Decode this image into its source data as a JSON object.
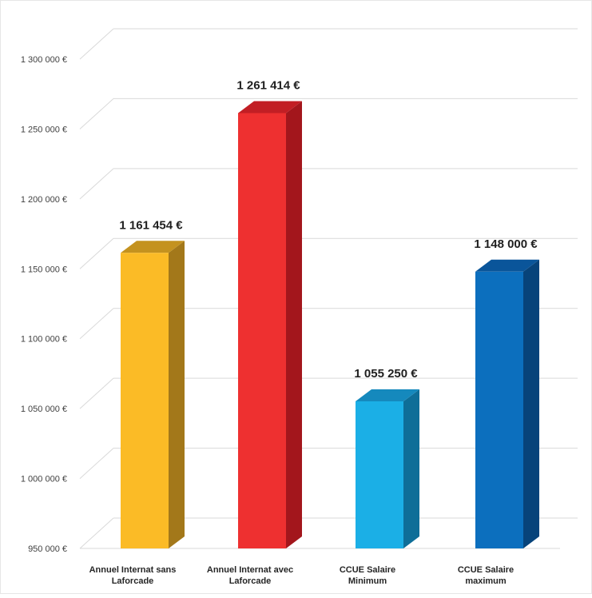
{
  "chart_data": {
    "type": "bar",
    "title": "",
    "xlabel": "",
    "ylabel": "",
    "categories": [
      [
        "Annuel Internat sans",
        "Laforcade"
      ],
      [
        "Annuel Internat avec",
        "Laforcade"
      ],
      [
        "CCUE Salaire",
        "Minimum"
      ],
      [
        "CCUE Salaire",
        "maximum"
      ]
    ],
    "values": [
      1161454,
      1261414,
      1055250,
      1148000
    ],
    "value_labels": [
      "1 161 454 €",
      "1 261 414 €",
      "1 055 250 €",
      "1 148 000 €"
    ],
    "ylim": [
      950000,
      1300000
    ],
    "yticks": [
      950000,
      1000000,
      1050000,
      1100000,
      1150000,
      1200000,
      1250000,
      1300000
    ],
    "ytick_labels": [
      "950 000 €",
      "1 000 000 €",
      "1 050 000 €",
      "1 100 000 €",
      "1 150 000 €",
      "1 200 000 €",
      "1 250 000 €",
      "1 300 000 €"
    ],
    "grid": true,
    "legend": "none",
    "style": "3d-bar",
    "colors": [
      {
        "front": "#FBBB26",
        "side": "#A3781A",
        "top": "#C4921F"
      },
      {
        "front": "#EE3030",
        "side": "#A3161C",
        "top": "#C21E24"
      },
      {
        "front": "#1BAFE6",
        "side": "#0E6E98",
        "top": "#1589BD"
      },
      {
        "front": "#0C6FBE",
        "side": "#07437A",
        "top": "#0A559A"
      }
    ],
    "grid_color": "#D9D9D9"
  }
}
